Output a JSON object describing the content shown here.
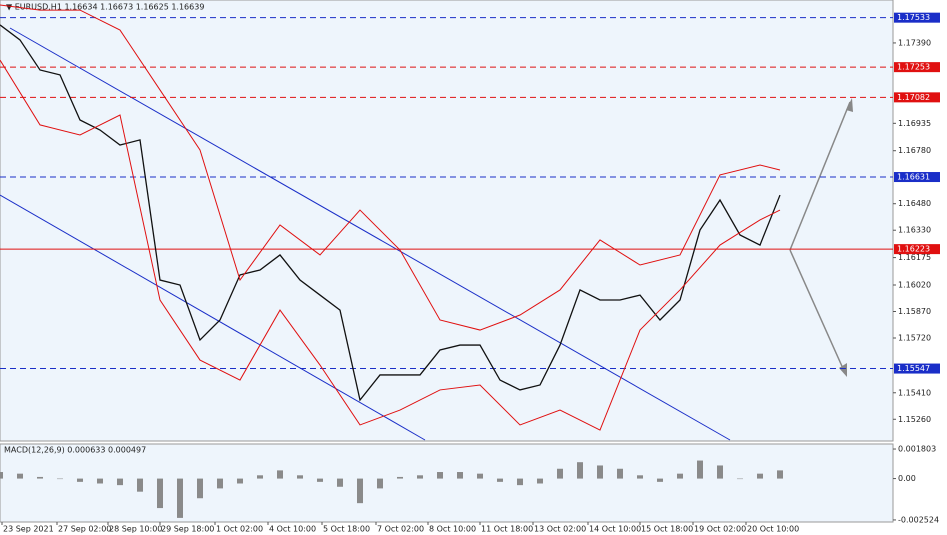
{
  "chart_data": [
    {
      "type": "line",
      "title": "▼ EURUSD,H1  1.16634 1.16673 1.16625 1.16639",
      "xlim": [
        0,
        89.3
      ],
      "ylim": [
        1.15137,
        1.17633
      ],
      "yticks": [
        {
          "value": 1.1739,
          "label": "1.17390"
        },
        {
          "value": 1.16935,
          "label": "1.16935"
        },
        {
          "value": 1.1678,
          "label": "1.16780"
        },
        {
          "value": 1.1648,
          "label": "1.16480"
        },
        {
          "value": 1.1633,
          "label": "1.16330"
        },
        {
          "value": 1.16175,
          "label": "1.16175"
        },
        {
          "value": 1.1602,
          "label": "1.16020"
        },
        {
          "value": 1.1587,
          "label": "1.15870"
        },
        {
          "value": 1.1572,
          "label": "1.15720"
        },
        {
          "value": 1.1541,
          "label": "1.15410"
        },
        {
          "value": 1.1526,
          "label": "1.15260"
        }
      ],
      "levels": [
        {
          "value": 1.17533,
          "label": "1.17533",
          "color": "#1a2ec8",
          "dashed": true
        },
        {
          "value": 1.17253,
          "label": "1.17253",
          "color": "#e01010",
          "dashed": true
        },
        {
          "value": 1.17082,
          "label": "1.17082",
          "color": "#e01010",
          "dashed": true
        },
        {
          "value": 1.16631,
          "label": "1.16631",
          "color": "#1a2ec8",
          "dashed": true
        },
        {
          "value": 1.16223,
          "label": "1.16223",
          "color": "#e01010",
          "dashed": false
        },
        {
          "value": 1.15547,
          "label": "1.15547",
          "color": "#1a2ec8",
          "dashed": true
        }
      ],
      "series": [
        {
          "color": "#111111",
          "x": [
            0,
            2,
            4,
            6,
            8,
            10,
            12,
            14,
            16,
            18,
            20,
            22,
            24,
            26,
            28,
            30,
            32,
            34,
            36,
            38,
            40,
            42,
            44,
            46,
            48,
            50,
            52,
            54,
            56,
            58,
            60,
            62,
            64,
            66,
            68,
            70,
            72,
            74,
            76,
            78
          ],
          "values": [
            1.17492,
            1.17407,
            1.17237,
            1.17209,
            1.16954,
            1.16897,
            1.16812,
            1.16841,
            1.16048,
            1.1602,
            1.15709,
            1.15822,
            1.16077,
            1.16105,
            1.1619,
            1.16048,
            1.15963,
            1.15878,
            1.15369,
            1.15511,
            1.15511,
            1.15511,
            1.15652,
            1.1568,
            1.1568,
            1.15482,
            1.15426,
            1.15454,
            1.1568,
            1.15992,
            1.15935,
            1.15935,
            1.15963,
            1.15822,
            1.15935,
            1.16331,
            1.16501,
            1.16303,
            1.16246,
            1.16529
          ]
        },
        {
          "color": "#e01010",
          "x": [
            0,
            4,
            8,
            12,
            16,
            20,
            24,
            28,
            32,
            36,
            40,
            44,
            48,
            52,
            56,
            60,
            64,
            68,
            72,
            76,
            78
          ],
          "values": [
            1.17605,
            1.17576,
            1.17576,
            1.17463,
            1.17124,
            1.16784,
            1.16048,
            1.1636,
            1.1619,
            1.16444,
            1.16218,
            1.15822,
            1.15765,
            1.1585,
            1.15992,
            1.16275,
            1.16133,
            1.1619,
            1.16643,
            1.16699,
            1.16671
          ]
        },
        {
          "color": "#e01010",
          "x": [
            0,
            4,
            8,
            12,
            16,
            20,
            24,
            28,
            32,
            36,
            40,
            44,
            48,
            52,
            56,
            60,
            64,
            68,
            72,
            76,
            78
          ],
          "values": [
            1.17293,
            1.16926,
            1.16869,
            1.16982,
            1.15935,
            1.15595,
            1.15482,
            1.15878,
            1.15567,
            1.15228,
            1.15312,
            1.15426,
            1.15454,
            1.15228,
            1.15312,
            1.15199,
            1.15765,
            1.15992,
            1.16246,
            1.16388,
            1.16444
          ]
        }
      ]
    },
    {
      "type": "bar",
      "title": "MACD(12,26,9) 0.000633 0.000497",
      "color": "#8a8a8a",
      "xlim": [
        0,
        89.3
      ],
      "ylim": [
        -0.00265,
        0.00211
      ],
      "yticks": [
        0.001803,
        {
          "value": 0,
          "label": "0.00"
        },
        -0.002524
      ],
      "x": [
        0,
        2,
        4,
        6,
        8,
        10,
        12,
        14,
        16,
        18,
        20,
        22,
        24,
        26,
        28,
        30,
        32,
        34,
        36,
        38,
        40,
        42,
        44,
        46,
        48,
        50,
        52,
        54,
        56,
        58,
        60,
        62,
        64,
        66,
        68,
        70,
        72,
        74,
        76,
        78
      ],
      "values": [
        0.0004,
        0.0003,
        0.0001,
        0.0,
        -0.0002,
        -0.0003,
        -0.0004,
        -0.0008,
        -0.0018,
        -0.0024,
        -0.0012,
        -0.0006,
        -0.0003,
        0.0002,
        0.0005,
        0.0002,
        -0.0002,
        -0.0005,
        -0.0015,
        -0.0006,
        0.0001,
        0.0002,
        0.0004,
        0.0004,
        0.0003,
        -0.0002,
        -0.0004,
        -0.0003,
        0.0006,
        0.001,
        0.0008,
        0.0006,
        0.0002,
        -0.0002,
        0.0003,
        0.0011,
        0.0008,
        0.0,
        0.0003,
        0.0005
      ],
      "xticks": [
        {
          "value": 0.2,
          "label": "23 Sep 2021"
        },
        {
          "value": 5.7,
          "label": "27 Sep 02:00"
        },
        {
          "value": 10.8,
          "label": "28 Sep 10:00"
        },
        {
          "value": 16,
          "label": "29 Sep 18:00"
        },
        {
          "value": 21.5,
          "label": "1 Oct 02:00"
        },
        {
          "value": 26.8,
          "label": "4 Oct 10:00"
        },
        {
          "value": 32.2,
          "label": "5 Oct 18:00"
        },
        {
          "value": 37.6,
          "label": "7 Oct 02:00"
        },
        {
          "value": 42.8,
          "label": "8 Oct 10:00"
        },
        {
          "value": 48,
          "label": "11 Oct 18:00"
        },
        {
          "value": 53.3,
          "label": "13 Oct 02:00"
        },
        {
          "value": 58.8,
          "label": "14 Oct 10:00"
        },
        {
          "value": 64,
          "label": "15 Oct 18:00"
        },
        {
          "value": 69.3,
          "label": "19 Oct 02:00"
        },
        {
          "value": 74.6,
          "label": "20 Oct 10:00"
        }
      ]
    }
  ]
}
